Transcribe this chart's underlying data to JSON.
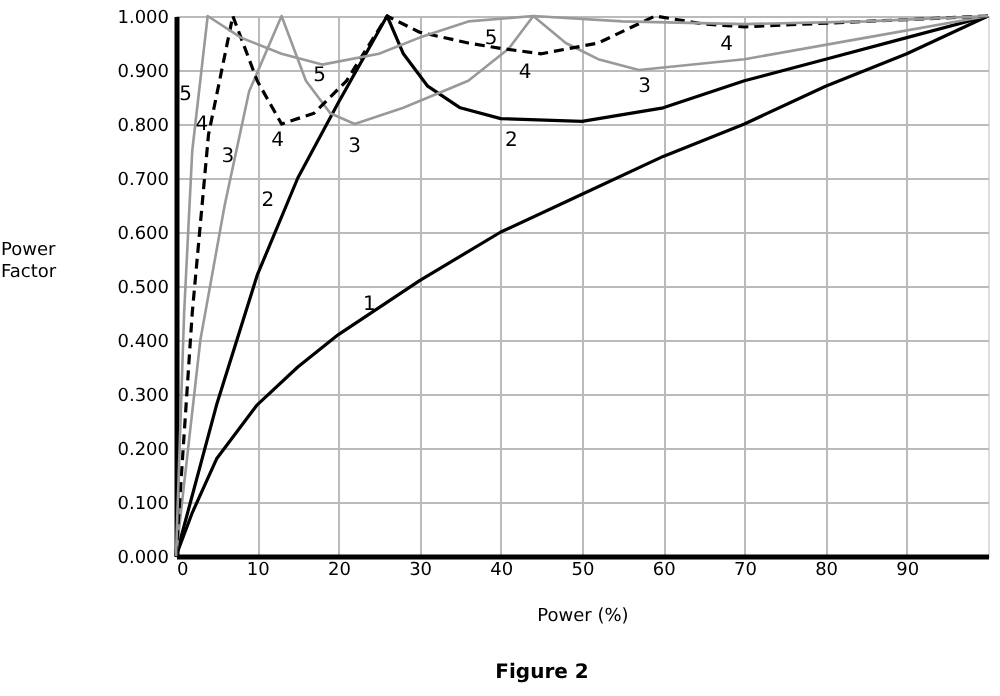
{
  "chart_data": {
    "type": "line",
    "xlabel": "Power (%)",
    "ylabel": "Power Factor",
    "xlim": [
      0,
      100
    ],
    "ylim": [
      0,
      1
    ],
    "xticks": [
      0,
      10,
      20,
      30,
      40,
      50,
      60,
      70,
      80,
      90
    ],
    "yticks": [
      {
        "value": 0,
        "label": "0.000"
      },
      {
        "value": 0.1,
        "label": "0.100"
      },
      {
        "value": 0.2,
        "label": "0.200"
      },
      {
        "value": 0.3,
        "label": "0.300"
      },
      {
        "value": 0.4,
        "label": "0.400"
      },
      {
        "value": 0.5,
        "label": "0.500"
      },
      {
        "value": 0.6,
        "label": "0.600"
      },
      {
        "value": 0.7,
        "label": "0.700"
      },
      {
        "value": 0.8,
        "label": "0.800"
      },
      {
        "value": 0.9,
        "label": "0.900"
      },
      {
        "value": 1,
        "label": "1.000"
      }
    ],
    "grid": true,
    "marker": "none",
    "series": [
      {
        "color": "#000000",
        "line_style": "solid",
        "x": [
          0,
          2,
          5,
          10,
          15,
          20,
          25,
          30,
          40,
          50,
          60,
          70,
          80,
          90,
          100
        ],
        "values": [
          0,
          0.08,
          0.18,
          0.28,
          0.35,
          0.41,
          0.46,
          0.51,
          0.6,
          0.67,
          0.74,
          0.8,
          0.87,
          0.93,
          1.0
        ]
      },
      {
        "color": "#000000",
        "line_style": "solid",
        "x": [
          0,
          5,
          10,
          15,
          20,
          26,
          28,
          31,
          35,
          40,
          50,
          60,
          70,
          80,
          90,
          100
        ],
        "values": [
          0,
          0.28,
          0.52,
          0.7,
          0.84,
          1.0,
          0.93,
          0.87,
          0.83,
          0.81,
          0.805,
          0.83,
          0.88,
          0.92,
          0.96,
          1.0
        ]
      },
      {
        "color": "#999999",
        "line_style": "solid",
        "x": [
          0,
          3,
          6,
          9,
          13,
          16,
          19,
          22,
          28,
          36,
          41,
          44,
          48,
          52,
          57,
          70,
          85,
          100
        ],
        "values": [
          0,
          0.4,
          0.65,
          0.86,
          1.0,
          0.88,
          0.82,
          0.8,
          0.83,
          0.88,
          0.94,
          1.0,
          0.95,
          0.92,
          0.9,
          0.92,
          0.96,
          1.0
        ]
      },
      {
        "color": "#000000",
        "line_style": "dashed",
        "x": [
          0,
          2,
          4,
          7,
          10,
          13,
          17,
          21,
          26,
          30,
          36,
          40,
          45,
          52,
          59,
          65,
          70,
          85,
          100
        ],
        "values": [
          0,
          0.45,
          0.78,
          1.0,
          0.88,
          0.8,
          0.82,
          0.88,
          1.0,
          0.97,
          0.95,
          0.94,
          0.93,
          0.95,
          1.0,
          0.985,
          0.98,
          0.99,
          1.0
        ]
      },
      {
        "color": "#999999",
        "line_style": "solid",
        "x": [
          0,
          1,
          2,
          3.9,
          8,
          13,
          18,
          25,
          30,
          36,
          44,
          55,
          70,
          85,
          100
        ],
        "values": [
          0,
          0.45,
          0.75,
          1.0,
          0.96,
          0.93,
          0.91,
          0.93,
          0.96,
          0.99,
          1.0,
          0.99,
          0.985,
          0.99,
          1.0
        ]
      }
    ],
    "annotations": [
      "1",
      "2",
      "3",
      "4",
      "5",
      "4",
      "3",
      "5",
      "2",
      "5",
      "4",
      "3",
      "4",
      "Figure 2"
    ]
  }
}
